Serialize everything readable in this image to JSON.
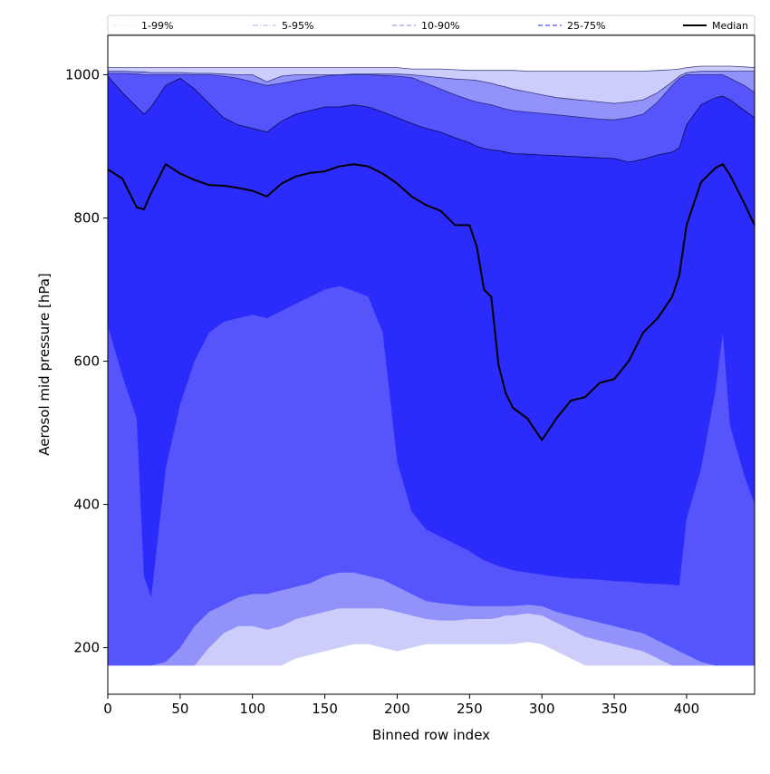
{
  "chart_data": {
    "type": "area",
    "xlabel": "Binned row index",
    "ylabel": "Aerosol mid pressure [hPa]",
    "xlim": [
      0,
      447
    ],
    "ylim": [
      135,
      1055
    ],
    "x_ticks": [
      0,
      50,
      100,
      150,
      200,
      250,
      300,
      350,
      400
    ],
    "y_ticks": [
      200,
      400,
      600,
      800,
      1000
    ],
    "grid": false,
    "legend_position": "top, spanning full width above plot",
    "legend": [
      {
        "label": "1-99%",
        "style": "dotted",
        "color": "#e4e4ff"
      },
      {
        "label": "5-95%",
        "style": "dashdot",
        "color": "#c4c4f4"
      },
      {
        "label": "10-90%",
        "style": "dashed",
        "color": "#9a9af0"
      },
      {
        "label": "25-75%",
        "style": "dashed",
        "color": "#5050e8"
      },
      {
        "label": "Median",
        "style": "solid",
        "color": "#000000"
      }
    ],
    "x": [
      0,
      10,
      20,
      25,
      30,
      40,
      50,
      60,
      70,
      80,
      90,
      100,
      110,
      120,
      130,
      140,
      150,
      160,
      170,
      180,
      190,
      200,
      210,
      220,
      230,
      240,
      250,
      255,
      260,
      265,
      270,
      275,
      280,
      290,
      300,
      310,
      320,
      330,
      340,
      350,
      360,
      370,
      380,
      390,
      395,
      400,
      410,
      420,
      425,
      430,
      440,
      447
    ],
    "bands": [
      {
        "name": "1-99%",
        "color": "#cdcdfb",
        "upper": [
          1010,
          1010,
          1010,
          1010,
          1010,
          1010,
          1010,
          1010,
          1010,
          1010,
          1010,
          1010,
          1010,
          1010,
          1010,
          1010,
          1010,
          1010,
          1010,
          1010,
          1010,
          1010,
          1008,
          1008,
          1008,
          1007,
          1006,
          1006,
          1006,
          1006,
          1006,
          1006,
          1006,
          1005,
          1005,
          1005,
          1005,
          1005,
          1005,
          1005,
          1005,
          1005,
          1006,
          1007,
          1008,
          1010,
          1012,
          1012,
          1012,
          1012,
          1011,
          1010
        ],
        "lower": [
          175,
          175,
          175,
          175,
          175,
          175,
          175,
          175,
          175,
          175,
          175,
          175,
          175,
          175,
          185,
          190,
          195,
          200,
          205,
          205,
          200,
          195,
          200,
          205,
          205,
          205,
          205,
          205,
          205,
          205,
          205,
          205,
          205,
          208,
          205,
          195,
          185,
          175,
          175,
          175,
          175,
          175,
          175,
          175,
          175,
          175,
          175,
          175,
          175,
          175,
          175,
          175
        ]
      },
      {
        "name": "5-95%",
        "color": "#9292fa",
        "upper": [
          1005,
          1005,
          1004,
          1004,
          1003,
          1003,
          1003,
          1002,
          1002,
          1001,
          1000,
          1000,
          990,
          998,
          1000,
          1000,
          1000,
          1000,
          1001,
          1001,
          1001,
          1001,
          1000,
          998,
          996,
          994,
          993,
          992,
          990,
          988,
          985,
          983,
          980,
          976,
          972,
          968,
          966,
          964,
          962,
          960,
          962,
          965,
          975,
          990,
          998,
          1003,
          1005,
          1005,
          1005,
          1005,
          1005,
          1005
        ],
        "lower": [
          175,
          175,
          175,
          175,
          175,
          175,
          175,
          175,
          200,
          220,
          230,
          230,
          225,
          230,
          240,
          245,
          250,
          255,
          255,
          255,
          255,
          250,
          245,
          240,
          238,
          238,
          240,
          240,
          240,
          240,
          242,
          245,
          245,
          248,
          245,
          235,
          225,
          215,
          210,
          205,
          200,
          195,
          185,
          175,
          175,
          175,
          175,
          175,
          175,
          175,
          175,
          175
        ]
      },
      {
        "name": "10-90%",
        "color": "#5555fb",
        "upper": [
          1002,
          1002,
          1001,
          1000,
          1000,
          1000,
          1000,
          1000,
          1000,
          998,
          995,
          990,
          985,
          988,
          992,
          995,
          998,
          1000,
          1000,
          1000,
          999,
          998,
          996,
          988,
          980,
          972,
          965,
          962,
          960,
          958,
          955,
          952,
          950,
          948,
          946,
          944,
          942,
          940,
          938,
          937,
          940,
          945,
          962,
          985,
          995,
          1000,
          1000,
          1000,
          1000,
          995,
          985,
          975
        ],
        "lower": [
          175,
          175,
          175,
          175,
          175,
          180,
          200,
          230,
          250,
          260,
          270,
          275,
          275,
          280,
          285,
          290,
          300,
          305,
          305,
          300,
          295,
          285,
          275,
          265,
          262,
          260,
          258,
          258,
          258,
          258,
          258,
          258,
          258,
          260,
          258,
          250,
          245,
          240,
          235,
          230,
          225,
          220,
          210,
          200,
          195,
          190,
          180,
          175,
          175,
          175,
          175,
          175
        ]
      },
      {
        "name": "25-75%",
        "color": "#2b2bfb",
        "upper": [
          998,
          975,
          955,
          945,
          955,
          985,
          995,
          980,
          960,
          940,
          930,
          925,
          920,
          935,
          945,
          950,
          955,
          955,
          958,
          955,
          948,
          940,
          932,
          925,
          920,
          912,
          905,
          900,
          897,
          895,
          894,
          892,
          890,
          889,
          888,
          887,
          886,
          885,
          884,
          883,
          878,
          882,
          888,
          892,
          898,
          930,
          958,
          968,
          970,
          965,
          950,
          940
        ],
        "lower": [
          650,
          580,
          520,
          300,
          270,
          450,
          540,
          600,
          640,
          655,
          660,
          665,
          660,
          670,
          680,
          690,
          700,
          705,
          698,
          690,
          640,
          460,
          390,
          365,
          355,
          345,
          335,
          328,
          322,
          318,
          314,
          311,
          308,
          305,
          302,
          299,
          297,
          296,
          295,
          293,
          292,
          290,
          289,
          288,
          287,
          380,
          450,
          560,
          640,
          510,
          440,
          400
        ]
      }
    ],
    "median": [
      868,
      855,
      815,
      812,
      835,
      875,
      862,
      853,
      846,
      845,
      842,
      838,
      830,
      848,
      858,
      863,
      865,
      872,
      875,
      872,
      862,
      848,
      830,
      818,
      810,
      790,
      790,
      760,
      700,
      690,
      595,
      555,
      535,
      520,
      490,
      520,
      545,
      550,
      570,
      575,
      600,
      640,
      660,
      690,
      720,
      790,
      850,
      870,
      875,
      860,
      820,
      790
    ]
  }
}
